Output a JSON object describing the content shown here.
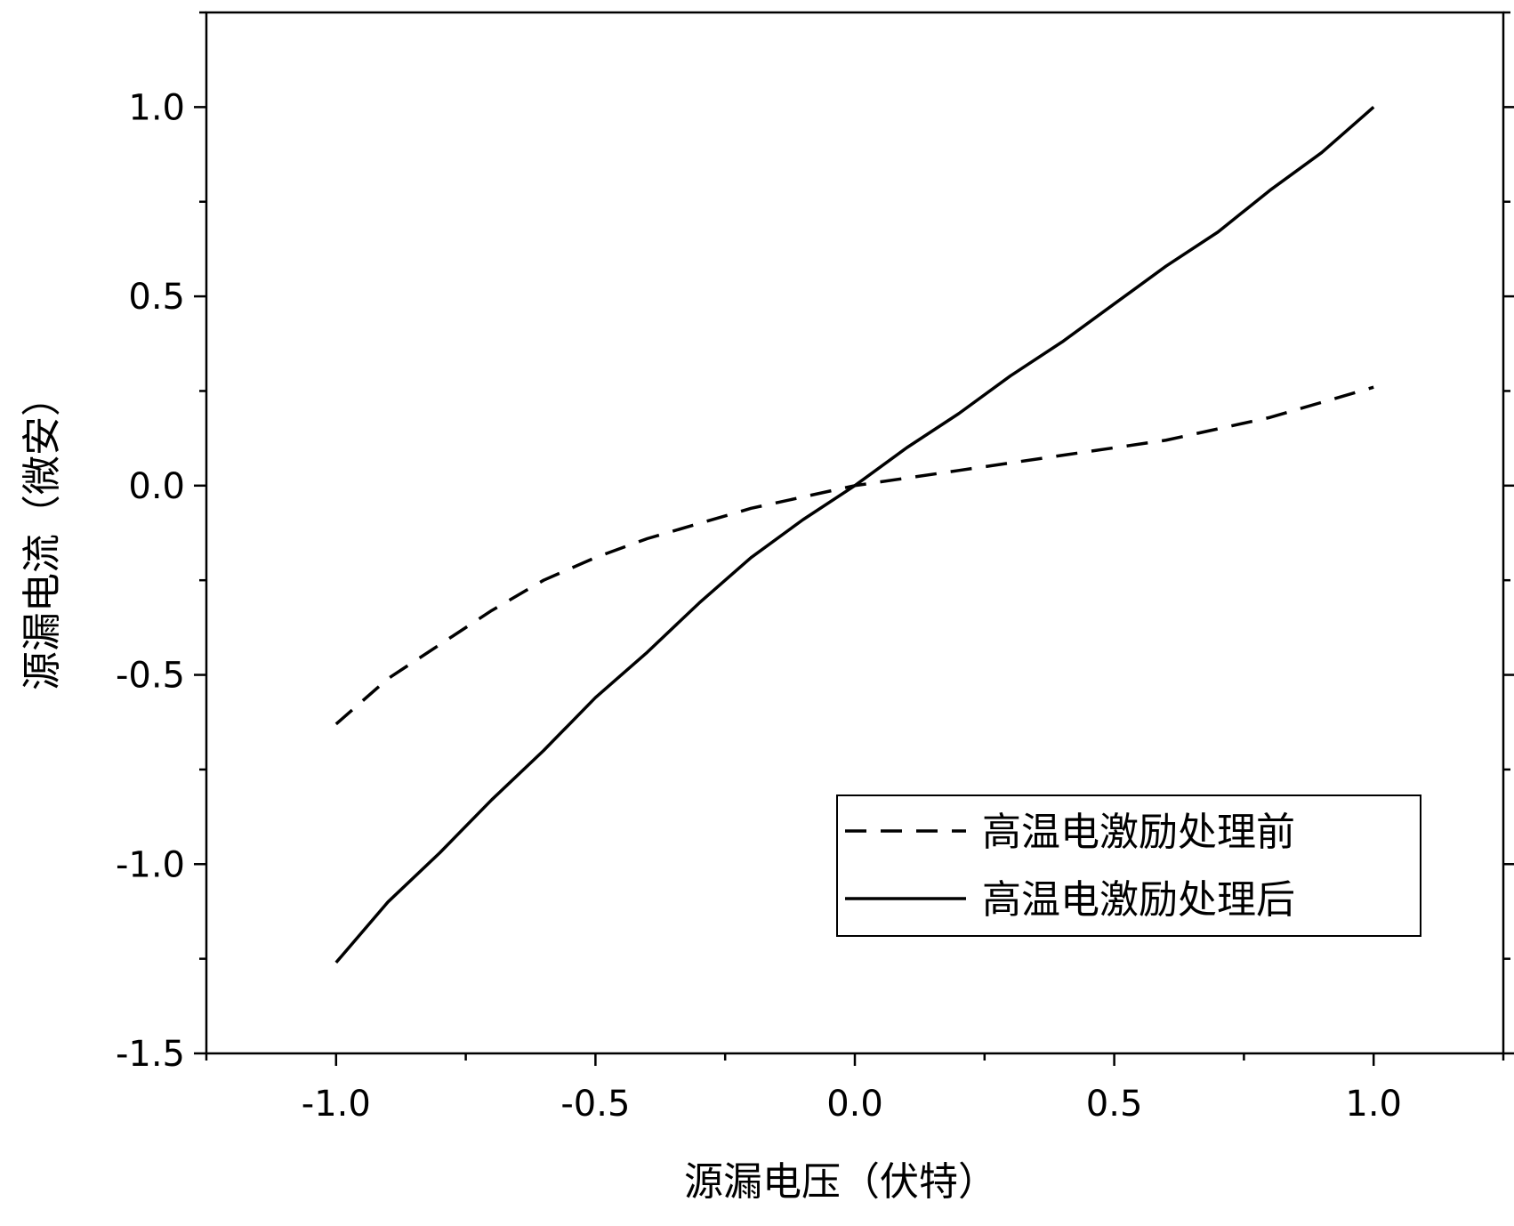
{
  "chart_data": {
    "type": "line",
    "title": "",
    "xlabel": "源漏电压（伏特）",
    "ylabel": "源漏电流（微安）",
    "xlim": [
      -1.25,
      1.25
    ],
    "ylim": [
      -1.5,
      1.25
    ],
    "x_ticks": [
      -1.0,
      -0.5,
      0.0,
      0.5,
      1.0
    ],
    "x_tick_labels": [
      "-1.0",
      "-0.5",
      "0.0",
      "0.5",
      "1.0"
    ],
    "y_ticks": [
      -1.5,
      -1.0,
      -0.5,
      0.0,
      0.5,
      1.0
    ],
    "y_tick_labels": [
      "-1.5",
      "-1.0",
      "-0.5",
      "0.0",
      "0.5",
      "1.0"
    ],
    "grid": false,
    "legend_position": "bottom-right",
    "series": [
      {
        "name": "高温电激励处理前",
        "line_style": "dashed",
        "color": "#000000",
        "x": [
          -1.0,
          -0.9,
          -0.8,
          -0.7,
          -0.6,
          -0.5,
          -0.4,
          -0.3,
          -0.2,
          -0.1,
          0.0,
          0.1,
          0.2,
          0.3,
          0.4,
          0.5,
          0.6,
          0.7,
          0.8,
          0.9,
          1.0
        ],
        "y": [
          -0.63,
          -0.51,
          -0.42,
          -0.33,
          -0.25,
          -0.19,
          -0.14,
          -0.1,
          -0.06,
          -0.03,
          0.0,
          0.02,
          0.04,
          0.06,
          0.08,
          0.1,
          0.12,
          0.15,
          0.18,
          0.22,
          0.26
        ]
      },
      {
        "name": "高温电激励处理后",
        "line_style": "solid",
        "color": "#000000",
        "x": [
          -1.0,
          -0.9,
          -0.8,
          -0.7,
          -0.6,
          -0.5,
          -0.4,
          -0.3,
          -0.2,
          -0.1,
          0.0,
          0.1,
          0.2,
          0.3,
          0.4,
          0.5,
          0.6,
          0.7,
          0.8,
          0.9,
          1.0
        ],
        "y": [
          -1.26,
          -1.1,
          -0.97,
          -0.83,
          -0.7,
          -0.56,
          -0.44,
          -0.31,
          -0.19,
          -0.09,
          0.0,
          0.1,
          0.19,
          0.29,
          0.38,
          0.48,
          0.58,
          0.67,
          0.78,
          0.88,
          1.0
        ]
      }
    ]
  }
}
